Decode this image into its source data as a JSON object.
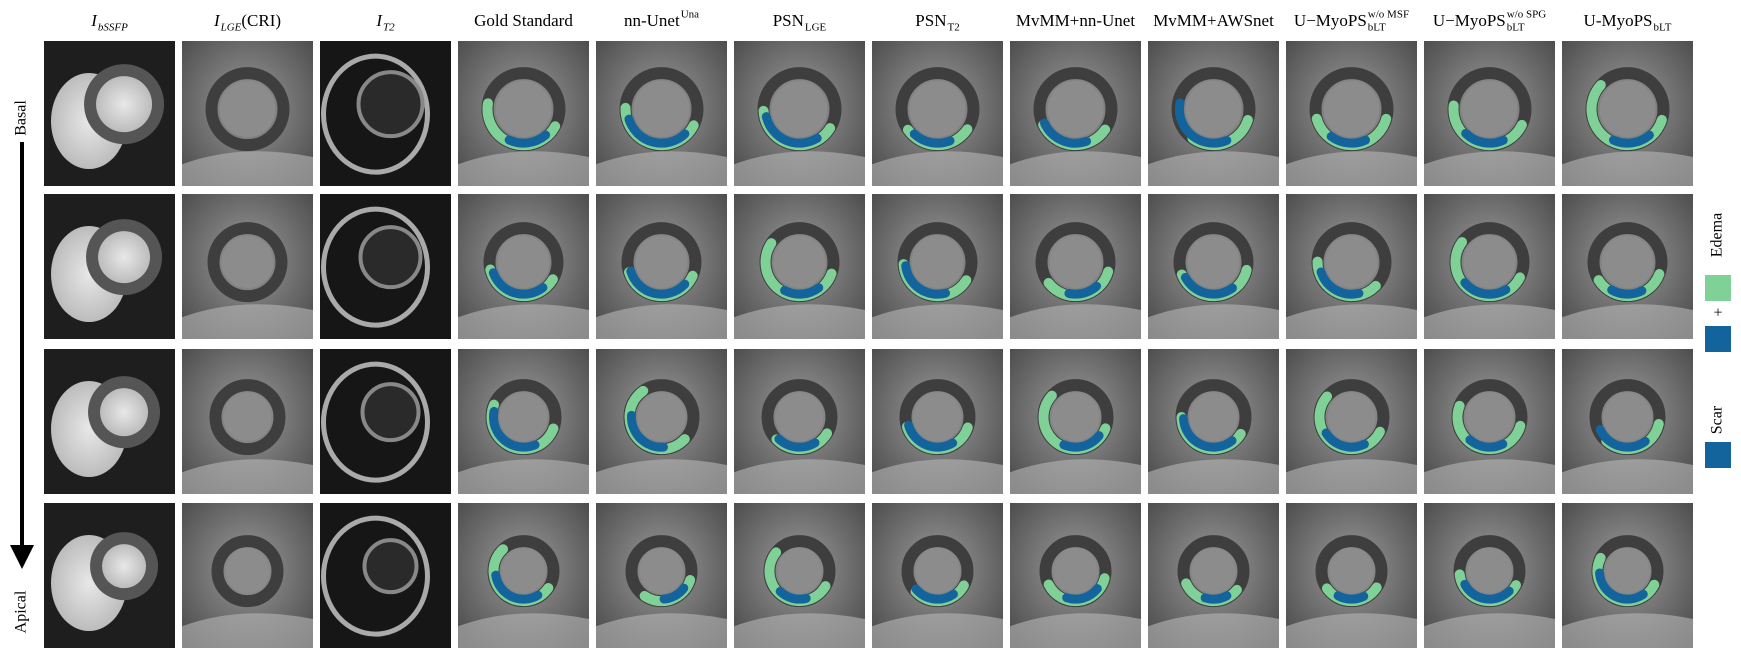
{
  "columns": [
    {
      "main": "I",
      "sub": "bSSFP",
      "italic": true
    },
    {
      "main": "I",
      "sub": "LGE",
      "suffix": " (CRI)",
      "italic": true
    },
    {
      "main": "I",
      "sub": "T2",
      "italic": true
    },
    {
      "main": "Gold Standard"
    },
    {
      "main": "nn-Unet",
      "sup": "Una"
    },
    {
      "main": "PSN",
      "sub": "LGE"
    },
    {
      "main": "PSN",
      "sub": "T2"
    },
    {
      "main": "MvMM+nn-Unet"
    },
    {
      "main": "MvMM+AWSnet"
    },
    {
      "main": "U−MyoPS",
      "sup": "w/o MSF",
      "sub": "bLT"
    },
    {
      "main": "U−MyoPS",
      "sup": "w/o SPG",
      "sub": "bLT"
    },
    {
      "main": "U-MyoPS",
      "sub": "bLT"
    }
  ],
  "rows": {
    "top": "Basal",
    "bottom": "Apical"
  },
  "legend": {
    "edema": "Edema",
    "plus": "+",
    "scar": "Scar"
  }
}
